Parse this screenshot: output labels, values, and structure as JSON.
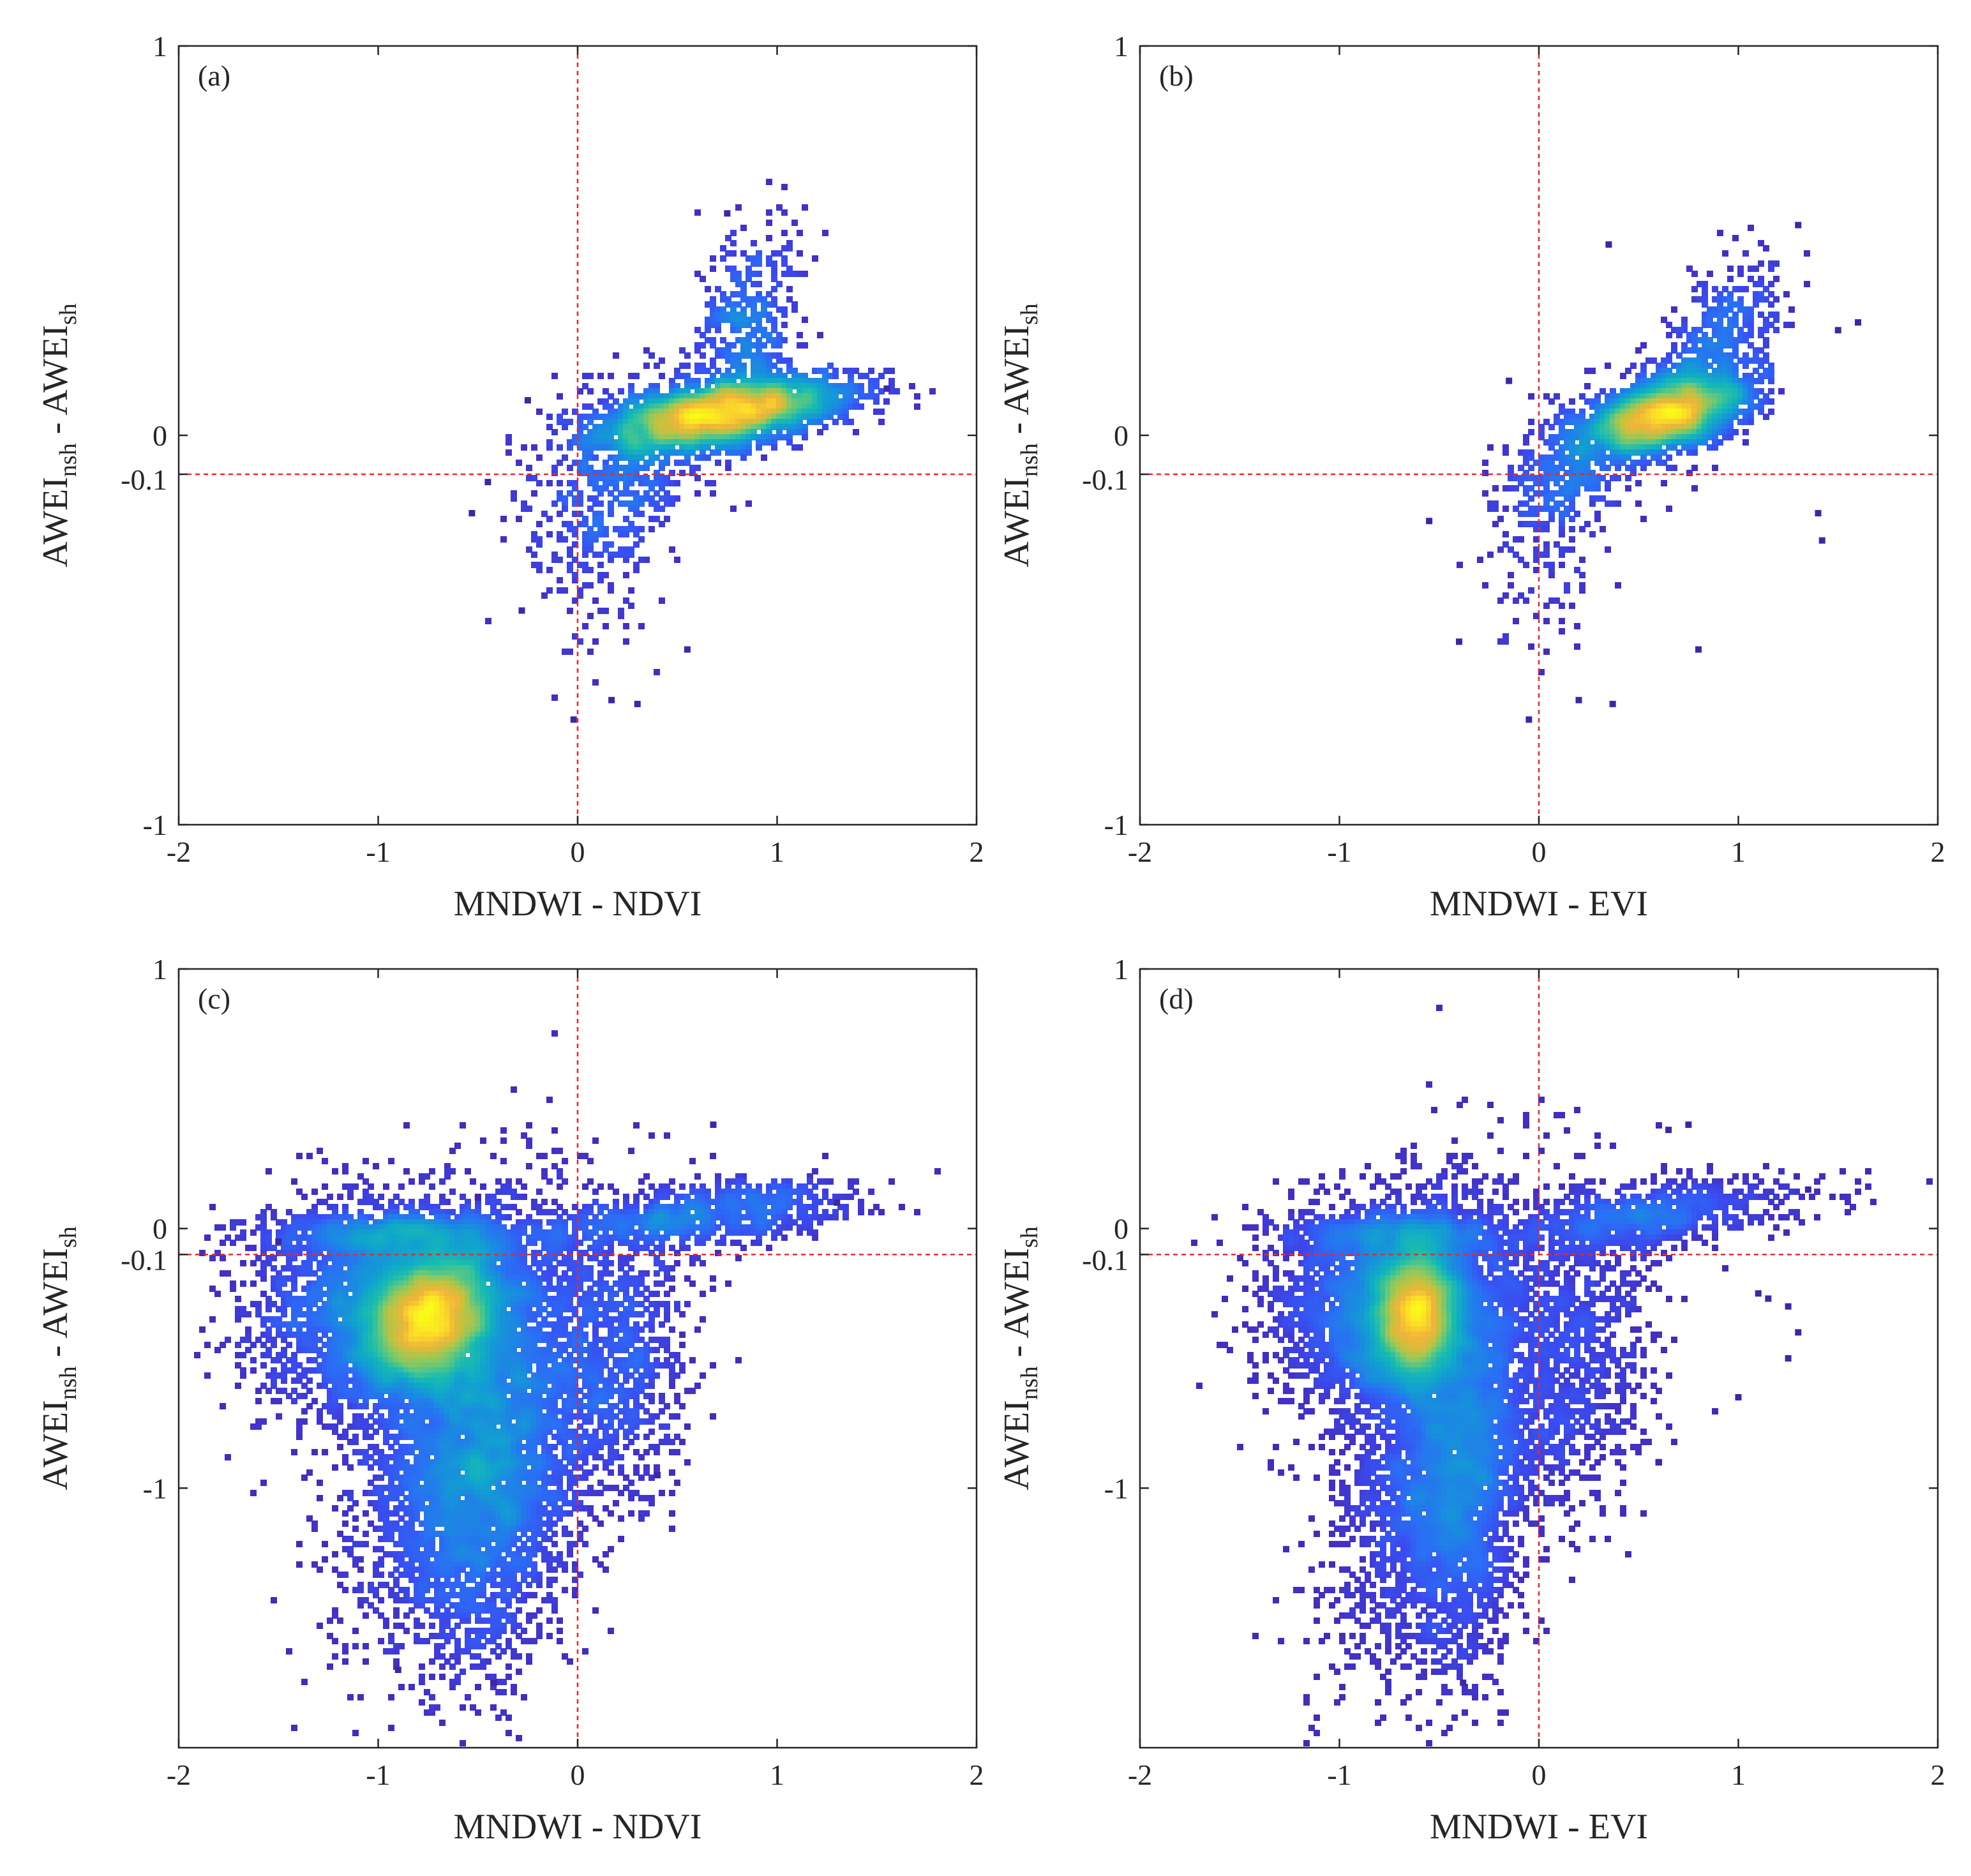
{
  "figure": {
    "colormap": [
      "#3e26a8",
      "#4232c8",
      "#3a4cf0",
      "#2a6ef5",
      "#1a8be0",
      "#10a6cc",
      "#19bbb0",
      "#4fc68a",
      "#8fc85e",
      "#c8c13d",
      "#f0b43a",
      "#fbd92a",
      "#f9fb15"
    ],
    "reference_line_color": "#e8282d",
    "marker_shape": "square"
  },
  "chart_data": [
    {
      "type": "scatter",
      "panel": "(a)",
      "xlabel": "MNDWI - NDVI",
      "ylabel": {
        "base1": "AWEI",
        "sub1": "nsh",
        "mid": " - AWEI",
        "sub2": "sh"
      },
      "xlim": [
        -2,
        2
      ],
      "ylim": [
        -1,
        1
      ],
      "xticks": [
        "-2",
        "-1",
        "0",
        "1",
        "2"
      ],
      "yticks": [
        "-1",
        "0",
        "1"
      ],
      "yticks_values": [
        -1,
        0,
        1
      ],
      "extra_ytick": "-0.1",
      "extra_ytick_value": -0.1,
      "vline_x": 0,
      "hline_y": -0.1,
      "density_peak": {
        "x": 0.7,
        "y": 0.05
      },
      "clusters": [
        {
          "cx": 0.68,
          "cy": 0.05,
          "sx": 0.28,
          "sy": 0.045,
          "rho": 0.45,
          "n": 2600
        },
        {
          "cx": 0.95,
          "cy": 0.09,
          "sx": 0.28,
          "sy": 0.03,
          "rho": 0.3,
          "n": 500
        },
        {
          "cx": 0.85,
          "cy": 0.28,
          "sx": 0.13,
          "sy": 0.12,
          "rho": 0.2,
          "n": 420
        },
        {
          "cx": 0.22,
          "cy": -0.1,
          "sx": 0.22,
          "sy": 0.12,
          "rho": 0.3,
          "n": 460
        },
        {
          "cx": 0.05,
          "cy": -0.3,
          "sx": 0.18,
          "sy": 0.14,
          "rho": 0.0,
          "n": 110
        }
      ],
      "outliers": [
        [
          -0.28,
          -0.45
        ],
        [
          -0.02,
          -0.73
        ],
        [
          0.17,
          -0.68
        ],
        [
          0.3,
          -0.69
        ],
        [
          0.55,
          -0.55
        ],
        [
          -0.53,
          -0.2
        ],
        [
          -0.45,
          -0.12
        ],
        [
          0.75,
          0.57
        ],
        [
          1.55,
          0.12
        ],
        [
          -0.25,
          0.09
        ]
      ]
    },
    {
      "type": "scatter",
      "panel": "(b)",
      "xlabel": "MNDWI - EVI",
      "ylabel": {
        "base1": "AWEI",
        "sub1": "nsh",
        "mid": " - AWEI",
        "sub2": "sh"
      },
      "xlim": [
        -2,
        2
      ],
      "ylim": [
        -1,
        1
      ],
      "xticks": [
        "-2",
        "-1",
        "0",
        "1",
        "2"
      ],
      "yticks": [
        "-1",
        "0",
        "1"
      ],
      "yticks_values": [
        -1,
        0,
        1
      ],
      "extra_ytick": "-0.1",
      "extra_ytick_value": -0.1,
      "vline_x": 0,
      "hline_y": -0.1,
      "density_peak": {
        "x": 0.65,
        "y": 0.05
      },
      "clusters": [
        {
          "cx": 0.62,
          "cy": 0.05,
          "sx": 0.2,
          "sy": 0.05,
          "rho": 0.5,
          "n": 2400
        },
        {
          "cx": 0.85,
          "cy": 0.18,
          "sx": 0.17,
          "sy": 0.12,
          "rho": 0.55,
          "n": 600
        },
        {
          "cx": 0.15,
          "cy": -0.1,
          "sx": 0.18,
          "sy": 0.1,
          "rho": 0.3,
          "n": 380
        },
        {
          "cx": 0.05,
          "cy": -0.3,
          "sx": 0.15,
          "sy": 0.14,
          "rho": 0.0,
          "n": 90
        }
      ],
      "outliers": [
        [
          1.4,
          -0.2
        ],
        [
          1.42,
          -0.27
        ],
        [
          1.6,
          0.29
        ],
        [
          1.5,
          0.27
        ],
        [
          -0.4,
          -0.53
        ],
        [
          -0.05,
          -0.73
        ],
        [
          0.2,
          -0.68
        ],
        [
          0.37,
          -0.69
        ],
        [
          0.8,
          -0.55
        ],
        [
          -0.15,
          0.14
        ],
        [
          0.35,
          0.49
        ],
        [
          1.3,
          0.54
        ],
        [
          -0.55,
          -0.22
        ]
      ]
    },
    {
      "type": "scatter",
      "panel": "(c)",
      "xlabel": "MNDWI - NDVI",
      "ylabel": {
        "base1": "AWEI",
        "sub1": "nsh",
        "mid": " - AWEI",
        "sub2": "sh"
      },
      "xlim": [
        -2,
        2
      ],
      "ylim": [
        -2,
        1
      ],
      "xticks": [
        "-2",
        "-1",
        "0",
        "1",
        "2"
      ],
      "yticks": [
        "-1",
        "0",
        "1"
      ],
      "yticks_values": [
        -1,
        0,
        1
      ],
      "extra_ytick": "-0.1",
      "extra_ytick_value": -0.1,
      "vline_x": 0,
      "hline_y": -0.1,
      "density_peak": {
        "x": -0.75,
        "y": -0.35
      },
      "clusters": [
        {
          "cx": -0.75,
          "cy": -0.35,
          "sx": 0.16,
          "sy": 0.13,
          "rho": 0.2,
          "n": 5200
        },
        {
          "cx": -0.9,
          "cy": -0.3,
          "sx": 0.35,
          "sy": 0.2,
          "rho": 0.1,
          "n": 3500
        },
        {
          "cx": -0.45,
          "cy": -0.95,
          "sx": 0.2,
          "sy": 0.35,
          "rho": 0.2,
          "n": 2800
        },
        {
          "cx": -0.6,
          "cy": -0.75,
          "sx": 0.3,
          "sy": 0.42,
          "rho": 0.45,
          "n": 2200
        },
        {
          "cx": 0.15,
          "cy": -0.55,
          "sx": 0.2,
          "sy": 0.3,
          "rho": 0.2,
          "n": 1100
        },
        {
          "cx": 0.6,
          "cy": 0.05,
          "sx": 0.4,
          "sy": 0.07,
          "rho": 0.5,
          "n": 900
        },
        {
          "cx": -0.9,
          "cy": -0.02,
          "sx": 0.35,
          "sy": 0.04,
          "rho": 0.0,
          "n": 700
        }
      ],
      "outliers": [
        [
          0.68,
          0.4
        ],
        [
          1.3,
          0.1
        ],
        [
          -0.42,
          -1.75
        ],
        [
          -0.9,
          -1.7
        ],
        [
          -1.5,
          -0.05
        ],
        [
          0.4,
          -0.95
        ],
        [
          -0.5,
          0.12
        ]
      ]
    },
    {
      "type": "scatter",
      "panel": "(d)",
      "xlabel": "MNDWI - EVI",
      "ylabel": {
        "base1": "AWEI",
        "sub1": "nsh",
        "mid": " - AWEI",
        "sub2": "sh"
      },
      "xlim": [
        -2,
        2
      ],
      "ylim": [
        -2,
        1
      ],
      "xticks": [
        "-2",
        "-1",
        "0",
        "1",
        "2"
      ],
      "yticks": [
        "-1",
        "0",
        "1"
      ],
      "yticks_values": [
        -1,
        0,
        1
      ],
      "extra_ytick": "-0.1",
      "extra_ytick_value": -0.1,
      "vline_x": 0,
      "hline_y": -0.1,
      "density_peak": {
        "x": -0.62,
        "y": -0.33
      },
      "clusters": [
        {
          "cx": -0.62,
          "cy": -0.33,
          "sx": 0.11,
          "sy": 0.13,
          "rho": 0.1,
          "n": 5000
        },
        {
          "cx": -0.75,
          "cy": -0.3,
          "sx": 0.28,
          "sy": 0.2,
          "rho": 0.1,
          "n": 3400
        },
        {
          "cx": -0.38,
          "cy": -0.95,
          "sx": 0.16,
          "sy": 0.35,
          "rho": 0.2,
          "n": 2700
        },
        {
          "cx": -0.55,
          "cy": -0.75,
          "sx": 0.25,
          "sy": 0.42,
          "rho": 0.45,
          "n": 2100
        },
        {
          "cx": 0.15,
          "cy": -0.5,
          "sx": 0.22,
          "sy": 0.3,
          "rho": 0.2,
          "n": 1000
        },
        {
          "cx": 0.55,
          "cy": 0.05,
          "sx": 0.35,
          "sy": 0.07,
          "rho": 0.5,
          "n": 900
        },
        {
          "cx": -0.7,
          "cy": -0.02,
          "sx": 0.3,
          "sy": 0.04,
          "rho": 0.0,
          "n": 650
        }
      ],
      "outliers": [
        [
          1.1,
          -0.25
        ],
        [
          1.15,
          -0.27
        ],
        [
          1.25,
          -0.3
        ],
        [
          1.3,
          -0.4
        ],
        [
          1.25,
          -0.5
        ],
        [
          1.0,
          -0.65
        ],
        [
          0.6,
          -0.9
        ],
        [
          0.75,
          0.4
        ],
        [
          0.65,
          0.38
        ],
        [
          1.35,
          0.15
        ],
        [
          -0.38,
          -1.75
        ]
      ]
    }
  ]
}
